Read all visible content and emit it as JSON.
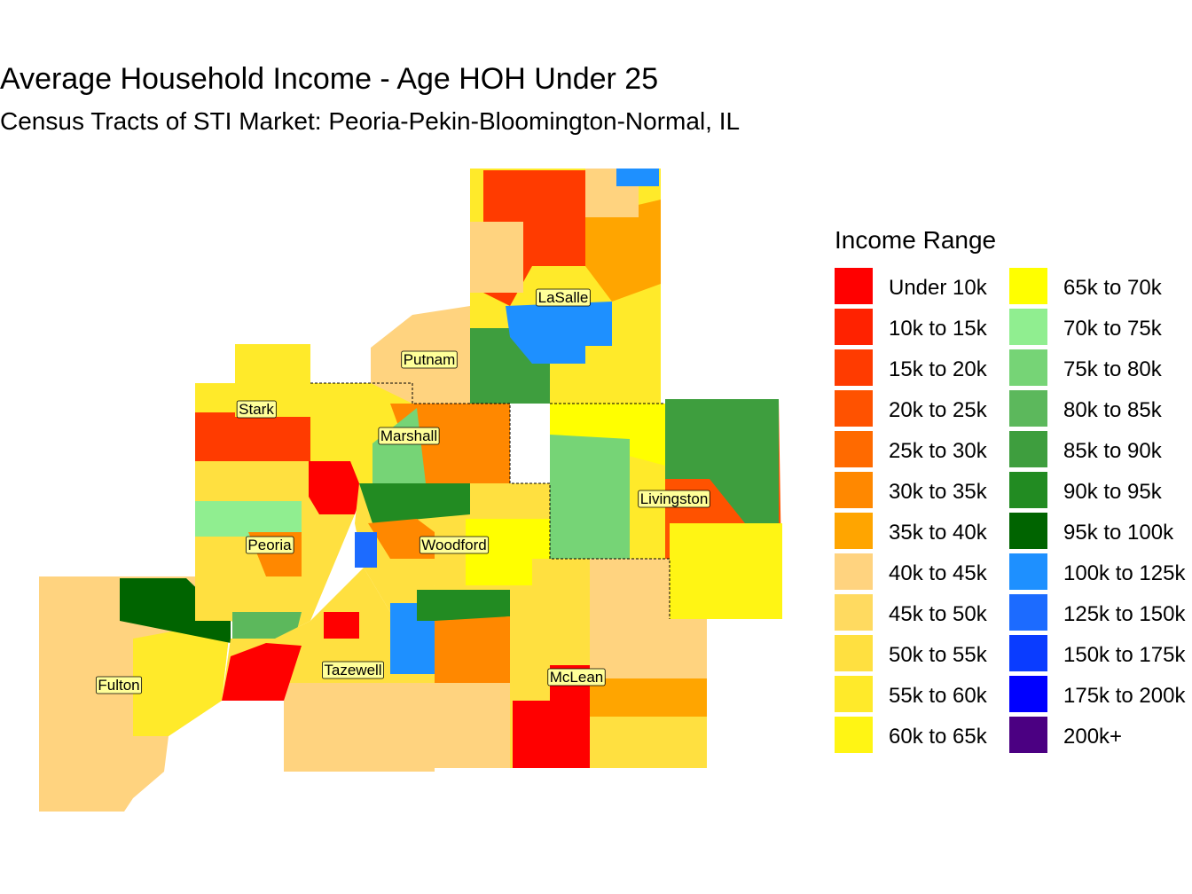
{
  "title": "Average Household Income - Age HOH Under 25",
  "subtitle": "Census Tracts of STI Market: Peoria-Pekin-Bloomington-Normal, IL",
  "legend": {
    "title": "Income Range",
    "items": [
      {
        "label": "Under 10k",
        "color": "#FF0000"
      },
      {
        "label": "10k to 15k",
        "color": "#FF2200"
      },
      {
        "label": "15k to 20k",
        "color": "#FF3B00"
      },
      {
        "label": "20k to 25k",
        "color": "#FF5200"
      },
      {
        "label": "25k to 30k",
        "color": "#FF6A00"
      },
      {
        "label": "30k to 35k",
        "color": "#FF8800"
      },
      {
        "label": "35k to 40k",
        "color": "#FFA500"
      },
      {
        "label": "40k to 45k",
        "color": "#FFD37F"
      },
      {
        "label": "45k to 50k",
        "color": "#FFDA60"
      },
      {
        "label": "50k to 55k",
        "color": "#FFE040"
      },
      {
        "label": "55k to 60k",
        "color": "#FFEA2A"
      },
      {
        "label": "60k to 65k",
        "color": "#FFF514"
      },
      {
        "label": "65k to 70k",
        "color": "#FFFF00"
      },
      {
        "label": "70k to 75k",
        "color": "#90EE90"
      },
      {
        "label": "75k to 80k",
        "color": "#76D476"
      },
      {
        "label": "80k to 85k",
        "color": "#5CB85C"
      },
      {
        "label": "85k to 90k",
        "color": "#3E9E3E"
      },
      {
        "label": "90k to 95k",
        "color": "#228B22"
      },
      {
        "label": "95k to 100k",
        "color": "#006400"
      },
      {
        "label": "100k to 125k",
        "color": "#1E90FF"
      },
      {
        "label": "125k to 150k",
        "color": "#1C6BFF"
      },
      {
        "label": "150k to 175k",
        "color": "#0A3CFF"
      },
      {
        "label": "175k to 200k",
        "color": "#0000FF"
      },
      {
        "label": "200k+",
        "color": "#4B0082"
      }
    ]
  },
  "counties": [
    {
      "label": "LaSalle"
    },
    {
      "label": "Putnam"
    },
    {
      "label": "Stark"
    },
    {
      "label": "Marshall"
    },
    {
      "label": "Livingston"
    },
    {
      "label": "Peoria"
    },
    {
      "label": "Woodford"
    },
    {
      "label": "Tazewell"
    },
    {
      "label": "McLean"
    },
    {
      "label": "Fulton"
    }
  ]
}
